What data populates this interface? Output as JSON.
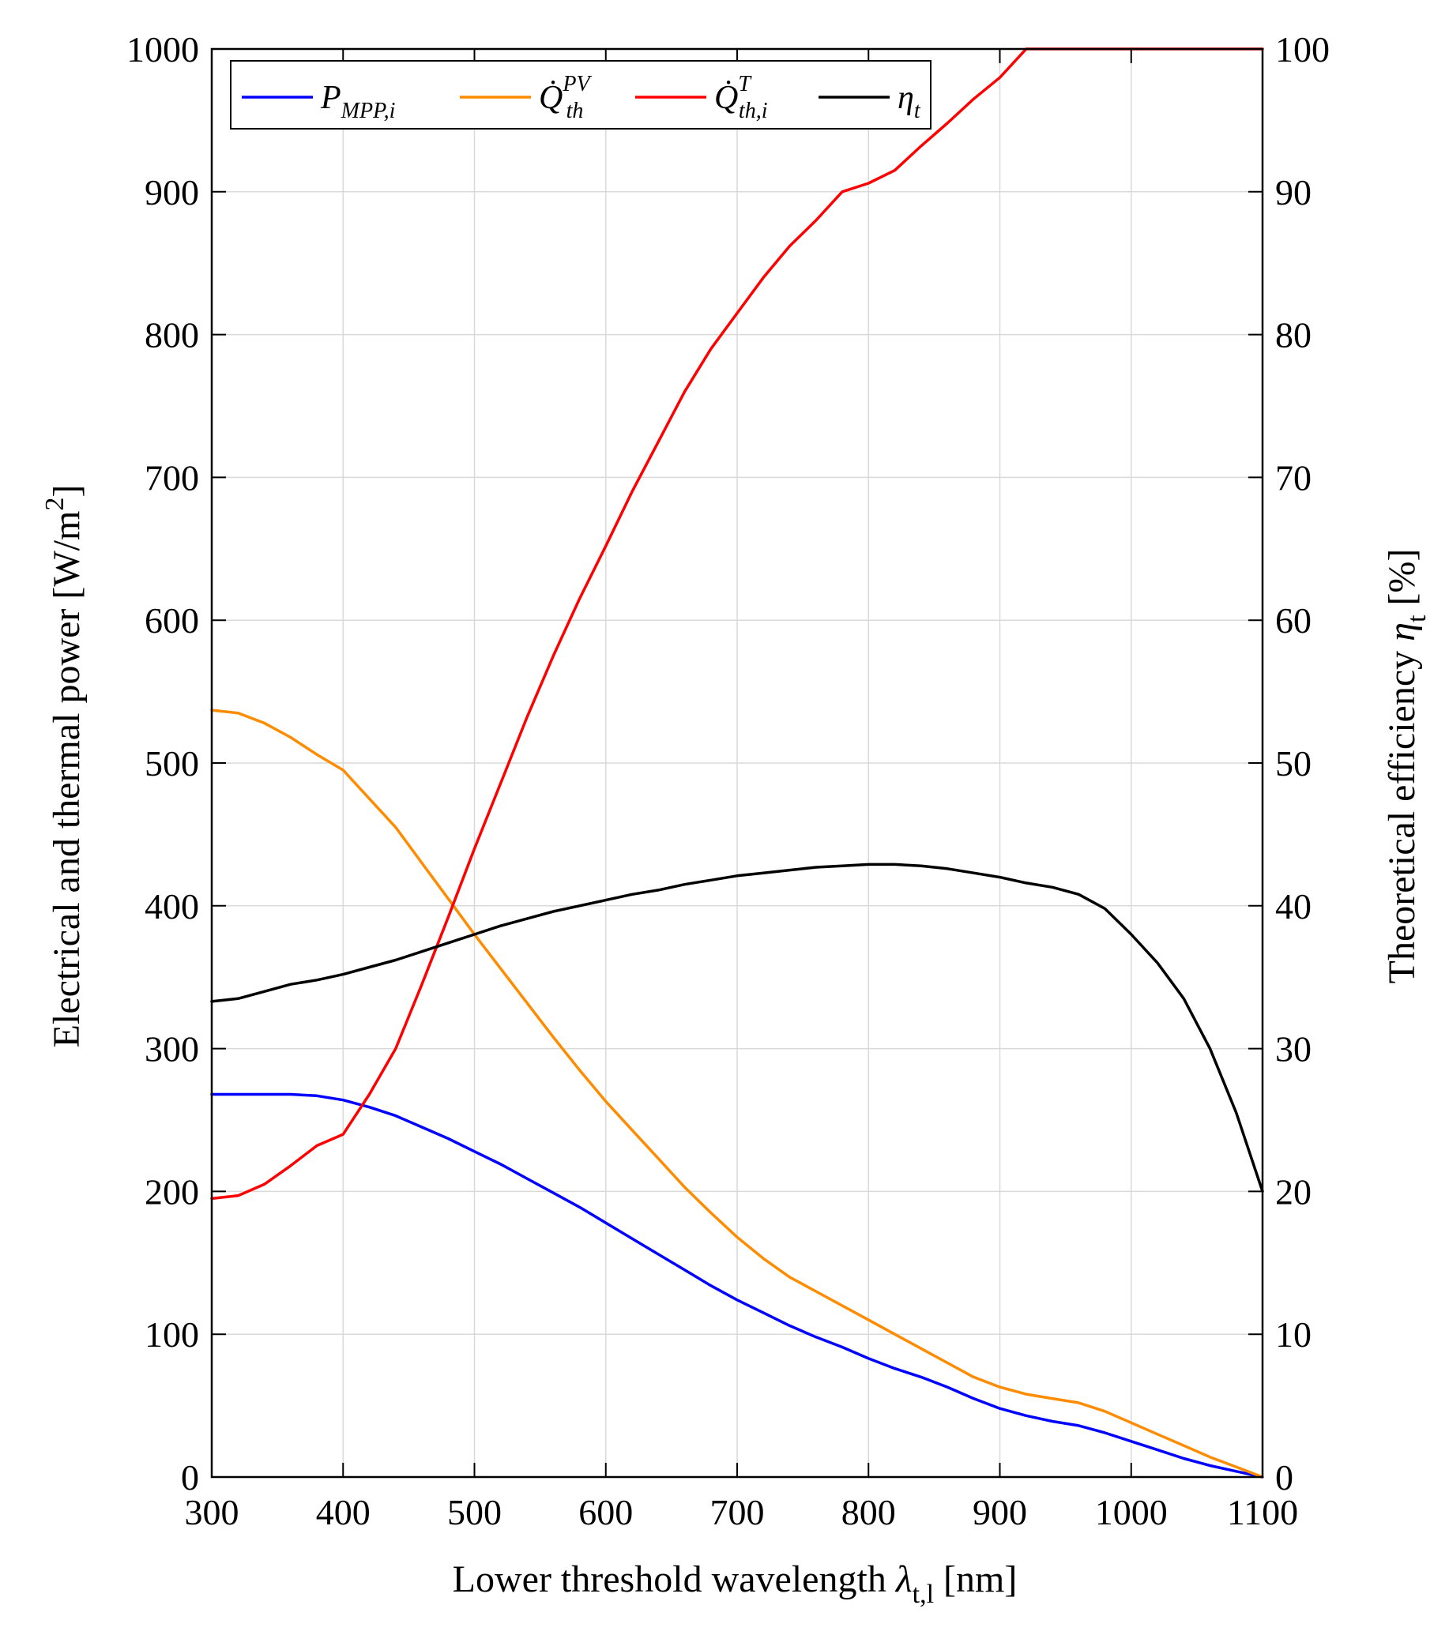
{
  "chart_data": {
    "type": "line",
    "xlabel": "Lower threshold wavelength λt,l [nm]",
    "xlabel_parts": {
      "main": "Lower threshold wavelength ",
      "symbol": "λ",
      "sub": "t,l",
      "unit": " [nm]"
    },
    "ylabel_left": "Electrical and thermal power [W/m2]",
    "ylabel_left_parts": {
      "main": "Electrical and thermal power [W/m",
      "sup": "2",
      "end": "]"
    },
    "ylabel_right": "Theoretical efficiency ηt [%]",
    "ylabel_right_parts": {
      "main": "Theoretical efficiency ",
      "symbol": "η",
      "sub": "t",
      "end": " [%]"
    },
    "xlim": [
      300,
      1100
    ],
    "ylim_left": [
      0,
      1000
    ],
    "ylim_right": [
      0,
      100
    ],
    "xticks": [
      300,
      400,
      500,
      600,
      700,
      800,
      900,
      1000,
      1100
    ],
    "yticks_left": [
      0,
      100,
      200,
      300,
      400,
      500,
      600,
      700,
      800,
      900,
      1000
    ],
    "yticks_right": [
      0,
      10,
      20,
      30,
      40,
      50,
      60,
      70,
      80,
      90,
      100
    ],
    "grid": true,
    "legend_position": "top-left",
    "x": [
      300,
      320,
      340,
      360,
      380,
      400,
      420,
      440,
      460,
      480,
      500,
      520,
      540,
      560,
      580,
      600,
      620,
      640,
      660,
      680,
      700,
      720,
      740,
      760,
      780,
      800,
      820,
      840,
      860,
      880,
      900,
      920,
      940,
      960,
      980,
      1000,
      1020,
      1040,
      1060,
      1080,
      1100
    ],
    "series": [
      {
        "name": "P_MPP,i",
        "legend_main": "P",
        "legend_sub": "MPP,i",
        "legend_sup": "",
        "axis": "left",
        "color": "#0000ff",
        "values": [
          268,
          268,
          268,
          268,
          267,
          264,
          259,
          253,
          245,
          237,
          228,
          219,
          209,
          199,
          189,
          178,
          167,
          156,
          145,
          134,
          124,
          115,
          106,
          98,
          91,
          83,
          76,
          70,
          63,
          55,
          48,
          43,
          39,
          36,
          31,
          25,
          19,
          13,
          8,
          4,
          0
        ]
      },
      {
        "name": "Q̇th^PV",
        "legend_main": "Q̇",
        "legend_sub": "th",
        "legend_sup": "PV",
        "axis": "left",
        "color": "#ff8c00",
        "values": [
          537,
          535,
          528,
          518,
          506,
          495,
          475,
          455,
          430,
          405,
          380,
          356,
          332,
          308,
          285,
          263,
          243,
          223,
          203,
          185,
          168,
          153,
          140,
          130,
          120,
          110,
          100,
          90,
          80,
          70,
          63,
          58,
          55,
          52,
          46,
          38,
          30,
          22,
          14,
          7,
          0
        ]
      },
      {
        "name": "Q̇th,i^T",
        "legend_main": "Q̇",
        "legend_sub": "th,i",
        "legend_sup": "T",
        "axis": "left",
        "color": "#ff0000",
        "values": [
          195,
          197,
          205,
          218,
          232,
          240,
          268,
          300,
          345,
          392,
          440,
          486,
          532,
          575,
          615,
          652,
          690,
          725,
          760,
          790,
          815,
          840,
          862,
          880,
          900,
          906,
          915,
          932,
          948,
          965,
          980,
          1000,
          1000,
          1000,
          1000,
          1000,
          1000,
          1000,
          1000,
          1000,
          1000
        ]
      },
      {
        "name": "ηt",
        "legend_main": "η",
        "legend_sub": "t",
        "legend_sup": "",
        "axis": "right",
        "color": "#000000",
        "values": [
          33.3,
          33.5,
          34.0,
          34.5,
          34.8,
          35.2,
          35.7,
          36.2,
          36.8,
          37.4,
          38.0,
          38.6,
          39.1,
          39.6,
          40.0,
          40.4,
          40.8,
          41.1,
          41.5,
          41.8,
          42.1,
          42.3,
          42.5,
          42.7,
          42.8,
          42.9,
          42.9,
          42.8,
          42.6,
          42.3,
          42.0,
          41.6,
          41.3,
          40.8,
          39.8,
          38.0,
          36.0,
          33.5,
          30.0,
          25.5,
          20.0
        ]
      }
    ]
  }
}
